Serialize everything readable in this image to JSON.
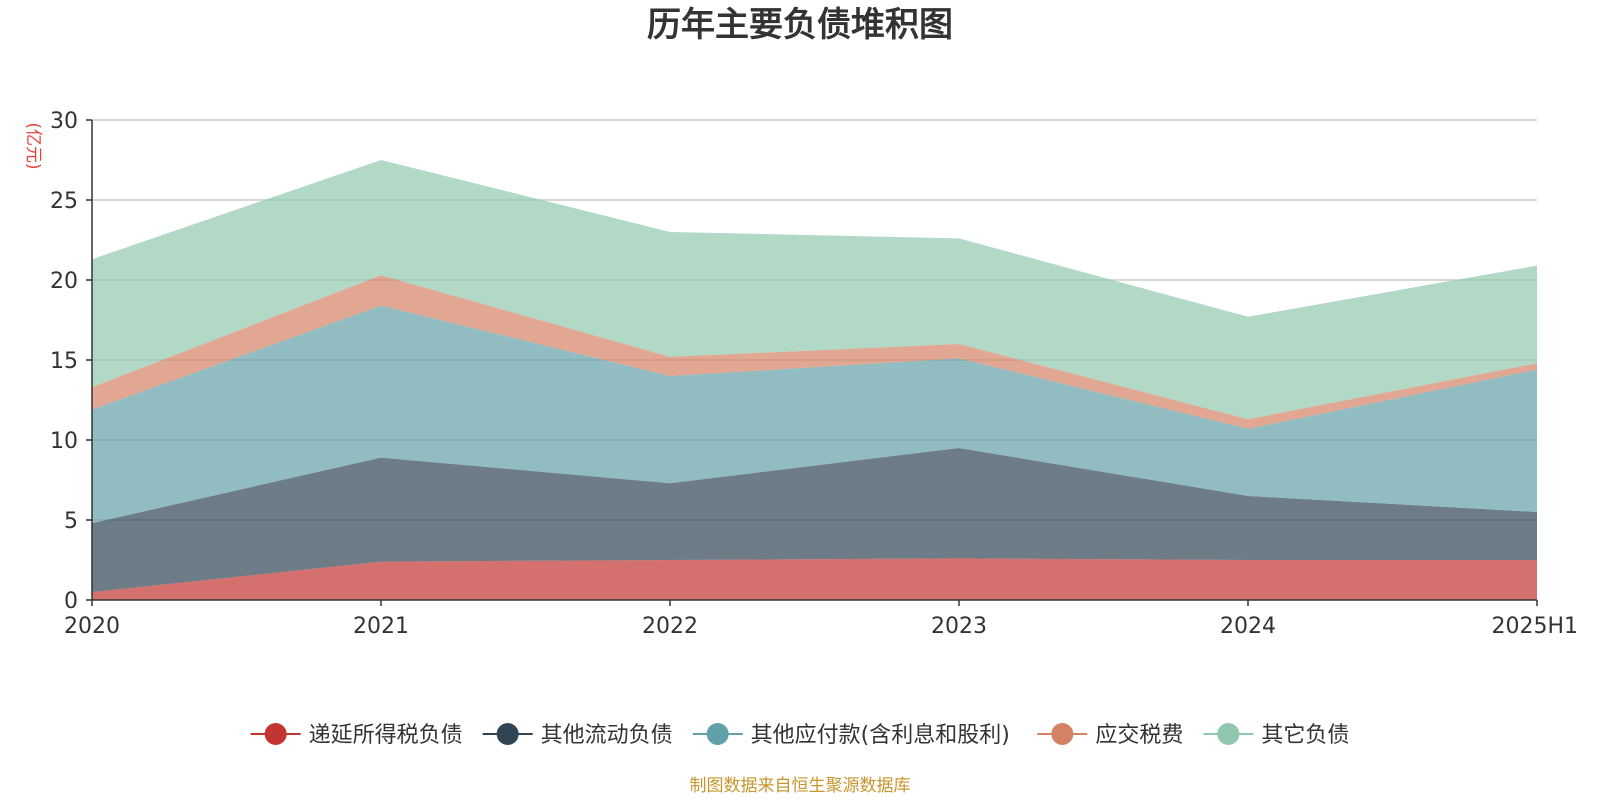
{
  "chart_data": {
    "type": "area",
    "stacked": true,
    "title": "历年主要负债堆积图",
    "ylabel": "(亿元)",
    "xlabel": "",
    "categories": [
      "2020",
      "2021",
      "2022",
      "2023",
      "2024",
      "2025H1"
    ],
    "ylim": [
      0,
      30
    ],
    "yticks": [
      0,
      5,
      10,
      15,
      20,
      25,
      30
    ],
    "grid": true,
    "legend_position": "bottom",
    "series": [
      {
        "name": "递延所得税负债",
        "color": "#c23531",
        "values": [
          0.5,
          2.4,
          2.5,
          2.6,
          2.5,
          2.5
        ]
      },
      {
        "name": "其他流动负债",
        "color": "#2f4554",
        "values": [
          4.3,
          6.5,
          4.8,
          6.9,
          4.0,
          3.0
        ]
      },
      {
        "name": "其他应付款(含利息和股利)",
        "color": "#61a0a8",
        "values": [
          7.1,
          9.5,
          6.7,
          5.6,
          4.2,
          8.9
        ]
      },
      {
        "name": "应交税费",
        "color": "#d48265",
        "values": [
          1.4,
          1.9,
          1.2,
          0.9,
          0.6,
          0.4
        ]
      },
      {
        "name": "其它负债",
        "color": "#91c7ae",
        "values": [
          8.0,
          7.2,
          7.8,
          6.6,
          6.4,
          6.1
        ]
      }
    ],
    "source_note": "制图数据来自恒生聚源数据库"
  }
}
